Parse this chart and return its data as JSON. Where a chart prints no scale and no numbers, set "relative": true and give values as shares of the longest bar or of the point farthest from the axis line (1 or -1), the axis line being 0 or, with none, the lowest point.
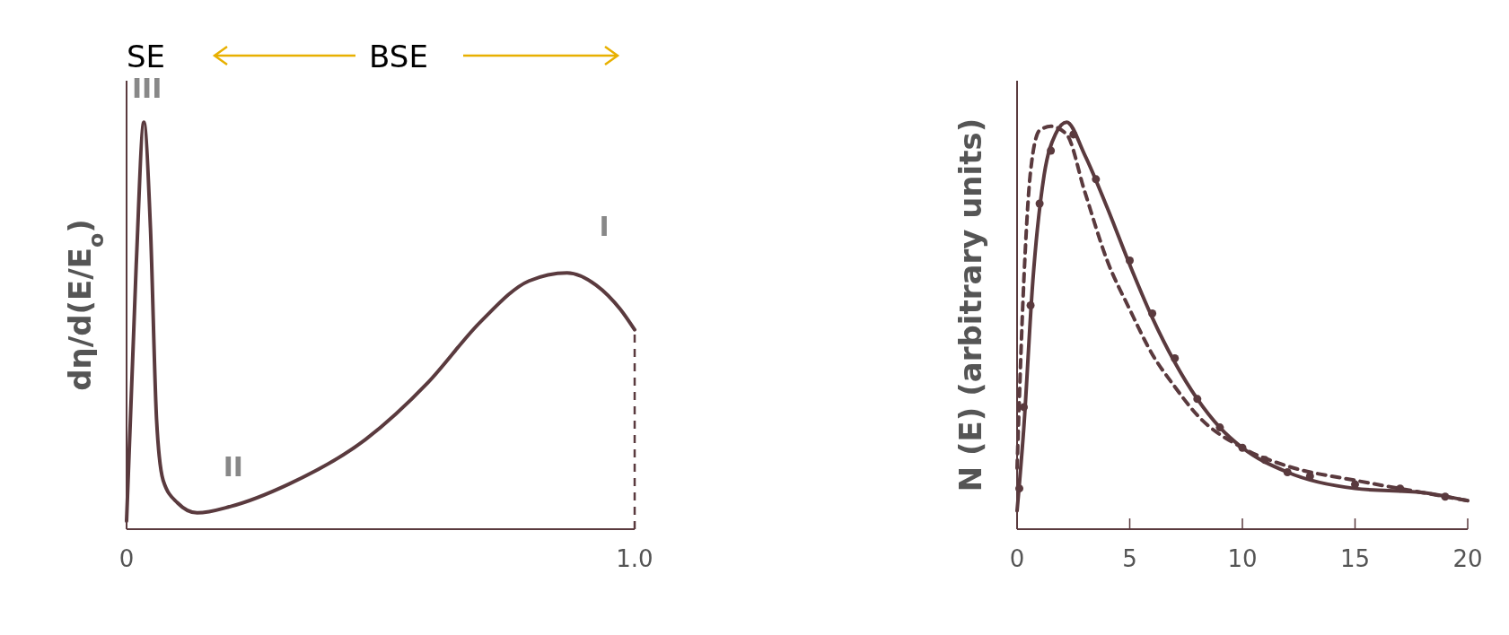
{
  "chart_data": [
    {
      "type": "line",
      "ylabel": "dη/d(E/E$_{o}$)",
      "relative": true,
      "xlim": [
        0,
        1
      ],
      "xticks": [
        0,
        {
          "value": 1,
          "label": "1.0"
        }
      ],
      "grid": false,
      "series": [
        {
          "color": "#5a3a3e",
          "line_style": "solid",
          "x": [
            0,
            0.019,
            0.034,
            0.047,
            0.059,
            0.072,
            0.1,
            0.139,
            0.205,
            0.318,
            0.47,
            0.593,
            0.697,
            0.792,
            0.867,
            0.924,
            0.972,
            1.0
          ],
          "values": [
            0.02,
            0.65,
            1.0,
            0.74,
            0.27,
            0.12,
            0.065,
            0.04,
            0.056,
            0.11,
            0.22,
            0.36,
            0.51,
            0.61,
            0.63,
            0.6,
            0.54,
            0.49
          ]
        }
      ],
      "ref_lines": [
        {
          "axis": "x",
          "value": 1,
          "line_style": "dashed",
          "color": "#5a3a3e"
        }
      ],
      "annotations": [
        "SE",
        "BSE",
        "III",
        "II",
        "I"
      ]
    },
    {
      "type": "line",
      "ylabel": "N (E) (arbitrary units)",
      "relative": true,
      "xlim": [
        0,
        20
      ],
      "xticks": [
        0,
        5,
        10,
        15,
        20
      ],
      "grid": false,
      "series": [
        {
          "color": "#5a3a3e",
          "line_style": "solid",
          "x": [
            0,
            0.3,
            0.7,
            1.2,
            1.7,
            2.2,
            3,
            4,
            5,
            6,
            7,
            8,
            9,
            10,
            12,
            15,
            18,
            20
          ],
          "values": [
            0.045,
            0.25,
            0.61,
            0.87,
            0.97,
            1.0,
            0.92,
            0.79,
            0.65,
            0.52,
            0.41,
            0.32,
            0.25,
            0.2,
            0.14,
            0.1,
            0.09,
            0.07
          ]
        },
        {
          "color": "#5a3a3e",
          "line_style": "dashed",
          "x": [
            0,
            0.3,
            0.6,
            1,
            1.5,
            2.2,
            3,
            4,
            5,
            6,
            7,
            8,
            10,
            12,
            15,
            18,
            20
          ],
          "values": [
            0.15,
            0.61,
            0.88,
            0.98,
            0.99,
            0.97,
            0.83,
            0.66,
            0.54,
            0.43,
            0.35,
            0.28,
            0.2,
            0.155,
            0.12,
            0.09,
            0.07
          ]
        },
        {
          "type": "scatter",
          "color": "#5a3a3e",
          "marker": "circle",
          "x": [
            0.1,
            0.3,
            0.6,
            1,
            1.5,
            2.5,
            3.5,
            5,
            6,
            7,
            8,
            9,
            10,
            11,
            12,
            13,
            15,
            17,
            19
          ],
          "values": [
            0.1,
            0.3,
            0.55,
            0.8,
            0.93,
            0.97,
            0.86,
            0.66,
            0.53,
            0.42,
            0.32,
            0.25,
            0.2,
            0.17,
            0.14,
            0.13,
            0.11,
            0.1,
            0.08
          ]
        }
      ]
    }
  ]
}
